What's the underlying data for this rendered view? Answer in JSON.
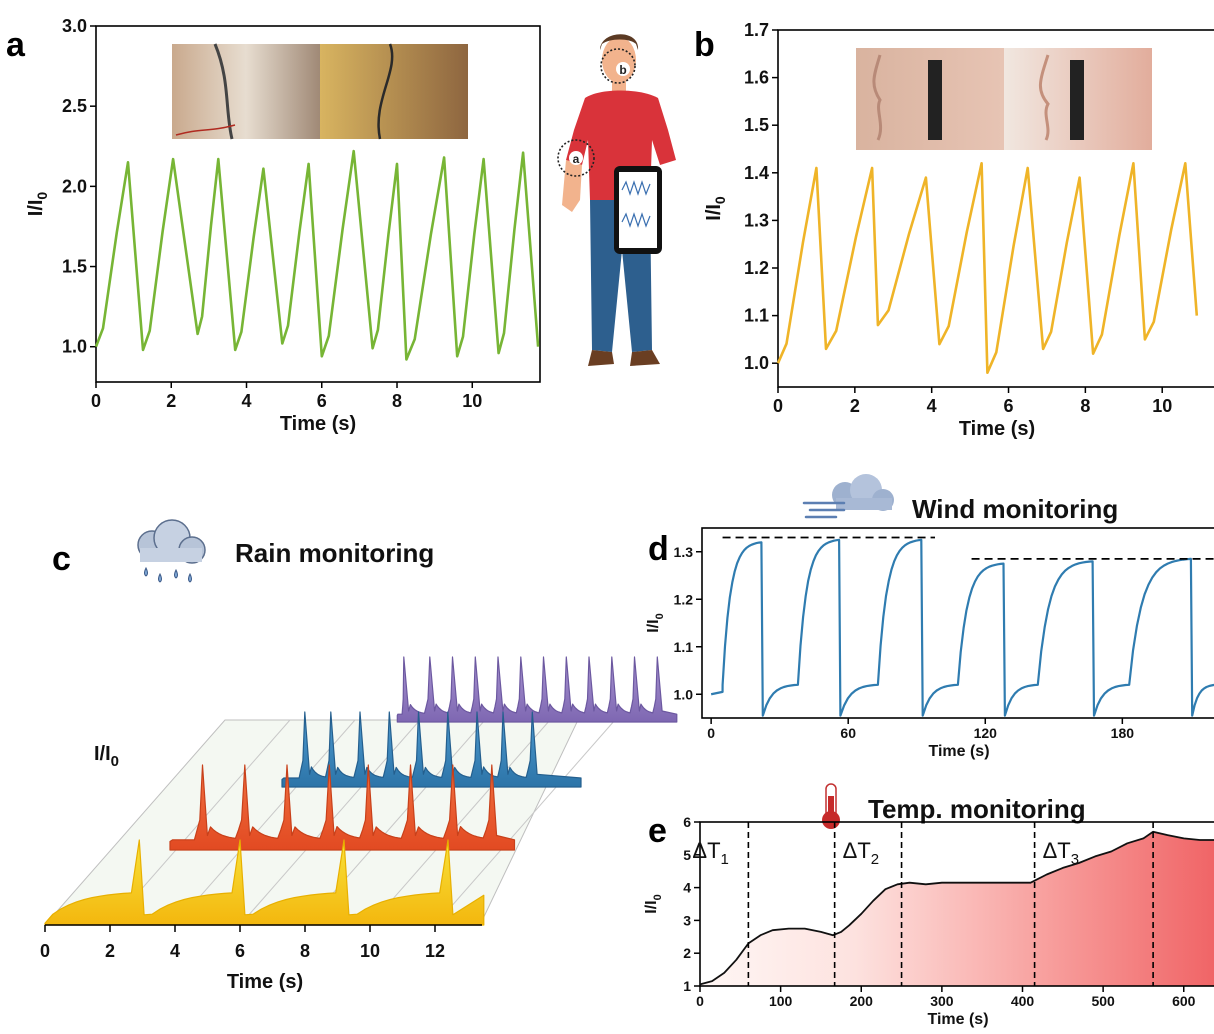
{
  "panels": {
    "a": {
      "label": "a"
    },
    "b": {
      "label": "b"
    },
    "c": {
      "label": "c",
      "title": "Rain monitoring",
      "ylabel_main": "I/I",
      "ylabel_sub": "0"
    },
    "d": {
      "label": "d",
      "title": "Wind monitoring"
    },
    "e": {
      "label": "e",
      "title": "Temp. monitoring"
    }
  },
  "figure": {
    "wearer_markers": [
      "b",
      "a"
    ]
  },
  "icons": {
    "photos_a": "arm-strain-sensor-photos",
    "photos_b": "cheek-strain-sensor-photos",
    "person": "person-with-tablet-icon",
    "rain": "rain-cloud-icon",
    "wind": "wind-cloud-icon",
    "temp": "thermometer-icon"
  },
  "colors": {
    "a": "#77b535",
    "b": "#efb428",
    "d": "#2f7cb0",
    "e_line": "#111111",
    "c_purple": "#9b85c6",
    "c_blue": "#3a88bf",
    "c_orange": "#ee5a2c",
    "c_yellow": "#f5d215"
  },
  "chart_data": [
    {
      "panel": "a",
      "type": "line",
      "xlabel": "Time (s)",
      "ylabel": "I/I",
      "ylabel_sub": "0",
      "xlim": [
        0,
        11.8
      ],
      "ylim": [
        0.78,
        3.0
      ],
      "xticks": [
        0,
        2,
        4,
        6,
        8,
        10
      ],
      "yticks": [
        1.0,
        1.5,
        2.0,
        2.5,
        3.0
      ],
      "peaks": [
        {
          "start": 0,
          "start_y": 1.0,
          "peak_t": 0.85,
          "peak_y": 2.15,
          "min_t": 1.25,
          "min_y": 0.98
        },
        {
          "peak_t": 2.05,
          "peak_y": 2.17,
          "min_t": 2.7,
          "min_y": 1.08
        },
        {
          "peak_t": 3.25,
          "peak_y": 2.17,
          "min_t": 3.7,
          "min_y": 0.98
        },
        {
          "peak_t": 4.45,
          "peak_y": 2.11,
          "min_t": 4.95,
          "min_y": 1.02
        },
        {
          "peak_t": 5.65,
          "peak_y": 2.14,
          "min_t": 6.0,
          "min_y": 0.94
        },
        {
          "peak_t": 6.85,
          "peak_y": 2.22,
          "min_t": 7.35,
          "min_y": 0.99
        },
        {
          "peak_t": 8.0,
          "peak_y": 2.14,
          "min_t": 8.25,
          "min_y": 0.92
        },
        {
          "peak_t": 9.25,
          "peak_y": 2.18,
          "min_t": 9.6,
          "min_y": 0.94
        },
        {
          "peak_t": 10.3,
          "peak_y": 2.17,
          "min_t": 10.7,
          "min_y": 0.96
        },
        {
          "peak_t": 11.35,
          "peak_y": 2.21,
          "min_t": 11.75,
          "min_y": 1.0
        }
      ]
    },
    {
      "panel": "b",
      "type": "line",
      "xlabel": "Time (s)",
      "ylabel": "I/I",
      "ylabel_sub": "0",
      "xlim": [
        0,
        11.4
      ],
      "ylim": [
        0.95,
        1.7
      ],
      "xticks": [
        0,
        2,
        4,
        6,
        8,
        10
      ],
      "yticks": [
        1.0,
        1.1,
        1.2,
        1.3,
        1.4,
        1.5,
        1.6,
        1.7
      ],
      "peaks": [
        {
          "start": 0,
          "start_y": 1.0,
          "peak_t": 1.0,
          "peak_y": 1.41,
          "min_t": 1.25,
          "min_y": 1.03
        },
        {
          "peak_t": 2.45,
          "peak_y": 1.41,
          "min_t": 2.6,
          "min_y": 1.08
        },
        {
          "peak_t": 3.85,
          "peak_y": 1.39,
          "min_t": 4.2,
          "min_y": 1.04
        },
        {
          "peak_t": 5.3,
          "peak_y": 1.42,
          "min_t": 5.45,
          "min_y": 0.98
        },
        {
          "peak_t": 6.5,
          "peak_y": 1.41,
          "min_t": 6.9,
          "min_y": 1.03
        },
        {
          "peak_t": 7.85,
          "peak_y": 1.39,
          "min_t": 8.2,
          "min_y": 1.02
        },
        {
          "peak_t": 9.25,
          "peak_y": 1.42,
          "min_t": 9.55,
          "min_y": 1.05
        },
        {
          "peak_t": 10.6,
          "peak_y": 1.42,
          "min_t": 10.9,
          "min_y": 1.1
        }
      ]
    },
    {
      "panel": "c",
      "type": "area",
      "xlabel": "Time (s)",
      "xticks": [
        0,
        2,
        4,
        6,
        8,
        10,
        12
      ],
      "series": [
        {
          "color": "yellow",
          "start": 0,
          "peaks": [
            2.9,
            6.0,
            9.2,
            12.4
          ],
          "height": 0.85,
          "decay": "slow"
        },
        {
          "color": "orange",
          "start": 2,
          "peaks": [
            3.0,
            4.3,
            5.6,
            6.9,
            8.1,
            9.4,
            10.7,
            11.9
          ],
          "height": 0.85,
          "decay": "medium"
        },
        {
          "color": "blue",
          "start": 3.6,
          "peaks": [
            4.3,
            5.1,
            6.0,
            6.9,
            7.8,
            8.7,
            9.6,
            10.4,
            11.3
          ],
          "height": 0.75,
          "decay": "fast"
        },
        {
          "color": "purple",
          "start": 5.3,
          "peaks": [
            5.5,
            6.3,
            7.0,
            7.7,
            8.4,
            9.1,
            9.8,
            10.5,
            11.2,
            11.9,
            12.6,
            13.3
          ],
          "height": 0.65,
          "decay": "fast"
        }
      ]
    },
    {
      "panel": "d",
      "type": "line",
      "xlabel": "Time (s)",
      "ylabel": "I/I",
      "ylabel_sub": "0",
      "xlim": [
        -4,
        221
      ],
      "ylim": [
        0.95,
        1.35
      ],
      "xticks": [
        0,
        60,
        120,
        180
      ],
      "yticks": [
        1.0,
        1.1,
        1.2,
        1.3
      ],
      "cycles": [
        {
          "on": 5,
          "off": 22,
          "plateau": 1.32,
          "base": 1.02
        },
        {
          "on": 38,
          "off": 56,
          "plateau": 1.325,
          "base": 1.02
        },
        {
          "on": 73,
          "off": 92,
          "plateau": 1.325,
          "base": 1.02
        },
        {
          "on": 108,
          "off": 128,
          "plateau": 1.275,
          "base": 1.02
        },
        {
          "on": 143,
          "off": 167,
          "plateau": 1.28,
          "base": 1.02
        },
        {
          "on": 183,
          "off": 210,
          "plateau": 1.285,
          "base": 1.02
        }
      ],
      "reference_lines": [
        {
          "y": 1.33,
          "x_start": 5,
          "x_end": 98
        },
        {
          "y": 1.285,
          "x_start": 114,
          "x_end": 221
        }
      ]
    },
    {
      "panel": "e",
      "type": "line",
      "xlabel": "Time (s)",
      "ylabel": "I/I",
      "ylabel_sub": "0",
      "xlim": [
        0,
        640
      ],
      "ylim": [
        1,
        6
      ],
      "xticks": [
        0,
        100,
        200,
        300,
        400,
        500,
        600
      ],
      "yticks": [
        1,
        2,
        3,
        4,
        5,
        6
      ],
      "points": [
        [
          0,
          1.05
        ],
        [
          15,
          1.15
        ],
        [
          30,
          1.4
        ],
        [
          45,
          1.8
        ],
        [
          60,
          2.3
        ],
        [
          75,
          2.55
        ],
        [
          90,
          2.7
        ],
        [
          110,
          2.75
        ],
        [
          130,
          2.75
        ],
        [
          150,
          2.65
        ],
        [
          165,
          2.55
        ],
        [
          175,
          2.65
        ],
        [
          185,
          2.85
        ],
        [
          200,
          3.2
        ],
        [
          215,
          3.6
        ],
        [
          230,
          3.95
        ],
        [
          245,
          4.1
        ],
        [
          260,
          4.15
        ],
        [
          280,
          4.1
        ],
        [
          300,
          4.15
        ],
        [
          330,
          4.15
        ],
        [
          360,
          4.15
        ],
        [
          390,
          4.15
        ],
        [
          410,
          4.15
        ],
        [
          430,
          4.4
        ],
        [
          450,
          4.6
        ],
        [
          470,
          4.75
        ],
        [
          490,
          4.95
        ],
        [
          510,
          5.1
        ],
        [
          530,
          5.35
        ],
        [
          550,
          5.5
        ],
        [
          562,
          5.7
        ],
        [
          580,
          5.6
        ],
        [
          600,
          5.5
        ],
        [
          620,
          5.45
        ],
        [
          640,
          5.45
        ]
      ],
      "markers": [
        {
          "x": 60,
          "label": "ΔT",
          "sub": "1"
        },
        {
          "x": 167,
          "label": "ΔT",
          "sub": "2"
        },
        {
          "x": 250,
          "label": "",
          "sub": ""
        },
        {
          "x": 415,
          "label": "ΔT",
          "sub": "3"
        },
        {
          "x": 562,
          "label": "",
          "sub": ""
        }
      ]
    }
  ]
}
